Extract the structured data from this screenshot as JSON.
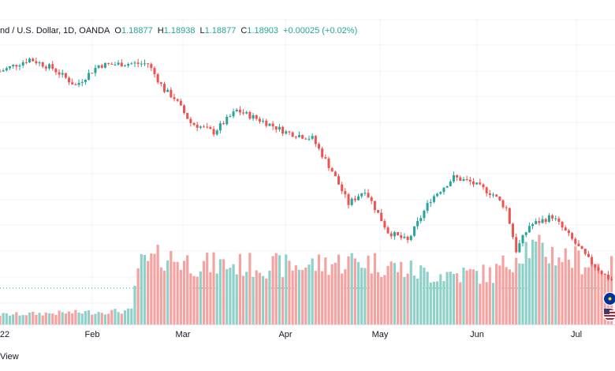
{
  "legend": {
    "symbol": "nd / U.S. Dollar, 1D, OANDA",
    "o_label": "O",
    "o": "1.18877",
    "h_label": "H",
    "h": "1.18938",
    "l_label": "L",
    "l": "1.18877",
    "c_label": "C",
    "c": "1.18903",
    "change": "+0.00025 (+0.02%)"
  },
  "footer": {
    "text": "View"
  },
  "colors": {
    "up": "#26a69a",
    "down": "#ef5350",
    "up_vol": "#8fd1c9",
    "down_vol": "#f5a3a1",
    "grid": "#f0f3fa",
    "axis_text": "#131722"
  },
  "flags": [
    "eu-flag-icon",
    "us-flag-icon"
  ],
  "chart_data": {
    "type": "candlestick",
    "x_tick_labels": [
      "22",
      "Feb",
      "Mar",
      "Apr",
      "May",
      "Jun",
      "Jul"
    ],
    "price_path": [
      {
        "day": 0,
        "price": 1.137
      },
      {
        "day": 9,
        "price": 1.145
      },
      {
        "day": 16,
        "price": 1.139
      },
      {
        "day": 23,
        "price": 1.128
      },
      {
        "day": 30,
        "price": 1.141
      },
      {
        "day": 38,
        "price": 1.142
      },
      {
        "day": 45,
        "price": 1.142
      },
      {
        "day": 50,
        "price": 1.125
      },
      {
        "day": 53,
        "price": 1.12
      },
      {
        "day": 58,
        "price": 1.104
      },
      {
        "day": 65,
        "price": 1.098
      },
      {
        "day": 72,
        "price": 1.112
      },
      {
        "day": 80,
        "price": 1.105
      },
      {
        "day": 87,
        "price": 1.098
      },
      {
        "day": 95,
        "price": 1.094
      },
      {
        "day": 101,
        "price": 1.073
      },
      {
        "day": 106,
        "price": 1.052
      },
      {
        "day": 111,
        "price": 1.061
      },
      {
        "day": 118,
        "price": 1.034
      },
      {
        "day": 124,
        "price": 1.028
      },
      {
        "day": 131,
        "price": 1.055
      },
      {
        "day": 138,
        "price": 1.069
      },
      {
        "day": 143,
        "price": 1.066
      },
      {
        "day": 150,
        "price": 1.058
      },
      {
        "day": 154,
        "price": 1.049
      },
      {
        "day": 157,
        "price": 1.022
      },
      {
        "day": 161,
        "price": 1.038
      },
      {
        "day": 168,
        "price": 1.044
      },
      {
        "day": 174,
        "price": 1.029
      },
      {
        "day": 179,
        "price": 1.016
      },
      {
        "day": 184,
        "price": 1.006
      },
      {
        "day": 186,
        "price": 1.003
      }
    ],
    "volume_path": [
      {
        "day": 0,
        "v": 10
      },
      {
        "day": 40,
        "v": 14
      },
      {
        "day": 42,
        "v": 60
      },
      {
        "day": 50,
        "v": 70
      },
      {
        "day": 60,
        "v": 62
      },
      {
        "day": 90,
        "v": 60
      },
      {
        "day": 110,
        "v": 66
      },
      {
        "day": 130,
        "v": 52
      },
      {
        "day": 150,
        "v": 52
      },
      {
        "day": 160,
        "v": 80
      },
      {
        "day": 186,
        "v": 58
      }
    ]
  }
}
